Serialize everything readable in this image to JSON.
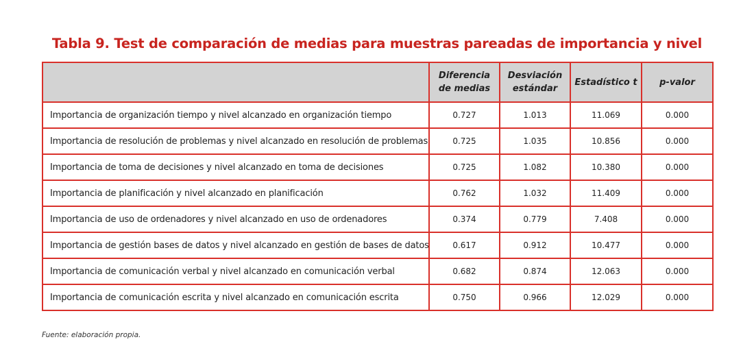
{
  "title": "Tabla 9. Test de comparación de medias para muestras pareadas de importancia y nivel",
  "columns": {
    "label": "",
    "mean_diff": [
      "Diferencia",
      "de medias"
    ],
    "std_dev": [
      "Desviación",
      "estándar"
    ],
    "t_stat": "Estadístico t",
    "p_value": "p-valor"
  },
  "rows": [
    {
      "label": "Importancia de organización tiempo y nivel alcanzado en organización tiempo",
      "mean_diff": "0.727",
      "std_dev": "1.013",
      "t_stat": "11.069",
      "p_value": "0.000"
    },
    {
      "label": "Importancia de resolución de problemas y nivel alcanzado en resolución de problemas",
      "mean_diff": "0.725",
      "std_dev": "1.035",
      "t_stat": "10.856",
      "p_value": "0.000"
    },
    {
      "label": "Importancia de toma de decisiones y nivel alcanzado en toma de decisiones",
      "mean_diff": "0.725",
      "std_dev": "1.082",
      "t_stat": "10.380",
      "p_value": "0.000"
    },
    {
      "label": "Importancia de planificación y nivel alcanzado en planificación",
      "mean_diff": "0.762",
      "std_dev": "1.032",
      "t_stat": "11.409",
      "p_value": "0.000"
    },
    {
      "label": "Importancia de uso de ordenadores y nivel alcanzado en uso de ordenadores",
      "mean_diff": "0.374",
      "std_dev": "0.779",
      "t_stat": "7.408",
      "p_value": "0.000"
    },
    {
      "label": "Importancia de gestión bases de datos y nivel alcanzado en gestión de bases de datos",
      "mean_diff": "0.617",
      "std_dev": "0.912",
      "t_stat": "10.477",
      "p_value": "0.000"
    },
    {
      "label": "Importancia de comunicación verbal y nivel alcanzado en comunicación verbal",
      "mean_diff": "0.682",
      "std_dev": "0.874",
      "t_stat": "12.063",
      "p_value": "0.000"
    },
    {
      "label": "Importancia de comunicación escrita y nivel alcanzado en comunicación escrita",
      "mean_diff": "0.750",
      "std_dev": "0.966",
      "t_stat": "12.029",
      "p_value": "0.000"
    }
  ],
  "footnote": "Fuente: elaboración propia.",
  "colors": {
    "title": "#c8241f",
    "border": "#d9302a",
    "header_bg": "#d3d3d3"
  }
}
